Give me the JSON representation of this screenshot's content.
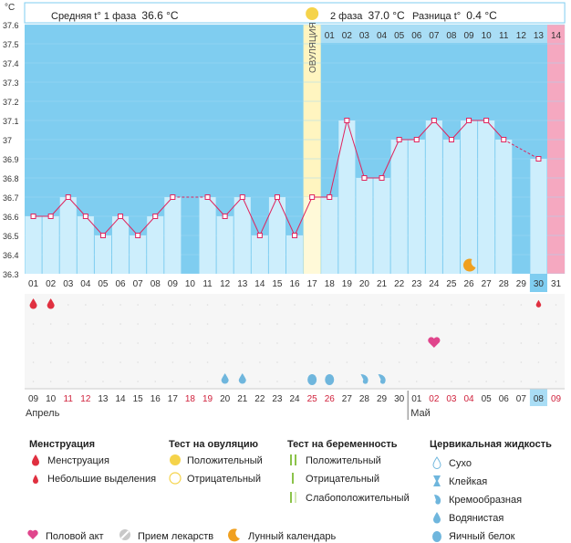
{
  "header": {
    "phase1_label": "Средняя t° 1 фаза",
    "phase1_value": "36.6 °C",
    "phase2_label": "2 фаза",
    "phase2_value": "37.0 °C",
    "diff_label": "Разница t°",
    "diff_value": "0.4 °C"
  },
  "chart_data": {
    "type": "line",
    "y_unit": "°C",
    "ylim": [
      36.3,
      37.6
    ],
    "yticks": [
      "37.6",
      "37.5",
      "37.4",
      "37.3",
      "37.2",
      "37.1",
      "37",
      "36.9",
      "36.8",
      "36.7",
      "36.6",
      "36.5",
      "36.4",
      "36.3"
    ],
    "cycle_days": [
      "01",
      "02",
      "03",
      "04",
      "05",
      "06",
      "07",
      "08",
      "09",
      "10",
      "11",
      "12",
      "13",
      "14",
      "15",
      "16",
      "17",
      "18",
      "19",
      "20",
      "21",
      "22",
      "23",
      "24",
      "25",
      "26",
      "27",
      "28",
      "29",
      "30",
      "31"
    ],
    "temperatures": [
      36.6,
      36.6,
      36.7,
      36.6,
      36.5,
      36.6,
      36.5,
      36.6,
      36.7,
      null,
      36.7,
      36.6,
      36.7,
      36.5,
      36.7,
      36.5,
      36.7,
      36.7,
      37.1,
      36.8,
      36.8,
      37.0,
      37.0,
      37.1,
      37.0,
      37.1,
      37.1,
      37.0,
      null,
      36.9,
      null
    ],
    "ovulation_label": "ОВУЛЯЦИЯ",
    "luteal_days": [
      "01",
      "02",
      "03",
      "04",
      "05",
      "06",
      "07",
      "08",
      "09",
      "10",
      "11",
      "12",
      "13",
      "14"
    ],
    "calendar_dates": [
      "09",
      "10",
      "11",
      "12",
      "13",
      "14",
      "15",
      "16",
      "17",
      "18",
      "19",
      "20",
      "21",
      "22",
      "23",
      "24",
      "25",
      "26",
      "27",
      "28",
      "29",
      "30",
      "01",
      "02",
      "03",
      "04",
      "05",
      "06",
      "07",
      "08",
      "09"
    ],
    "weekend_dates_index": [
      2,
      3,
      9,
      10,
      16,
      17,
      23,
      24,
      25
    ],
    "months": [
      "Апрель",
      "Май"
    ]
  },
  "legend": {
    "menstruation": {
      "title": "Менструация",
      "items": [
        "Менструация",
        "Небольшие выделения"
      ]
    },
    "ovulation_test": {
      "title": "Тест на овуляцию",
      "items": [
        "Положительный",
        "Отрицательный"
      ]
    },
    "pregnancy_test": {
      "title": "Тест на беременность",
      "items": [
        "Положительный",
        "Отрицательный",
        "Слабоположительный"
      ]
    },
    "cervical": {
      "title": "Цервикальная жидкость",
      "items": [
        "Сухо",
        "Клейкая",
        "Кремообразная",
        "Водянистая",
        "Яичный белок"
      ]
    },
    "bottom": [
      "Половой акт",
      "Прием лекарств",
      "Лунный календарь"
    ]
  },
  "colors": {
    "blue_bg": "#7fcdf0",
    "bar": "#cdeefc",
    "line": "#e0245e",
    "ovulation": "#fff5c0",
    "pink": "#f5a8c0",
    "drop": "#e03040"
  }
}
